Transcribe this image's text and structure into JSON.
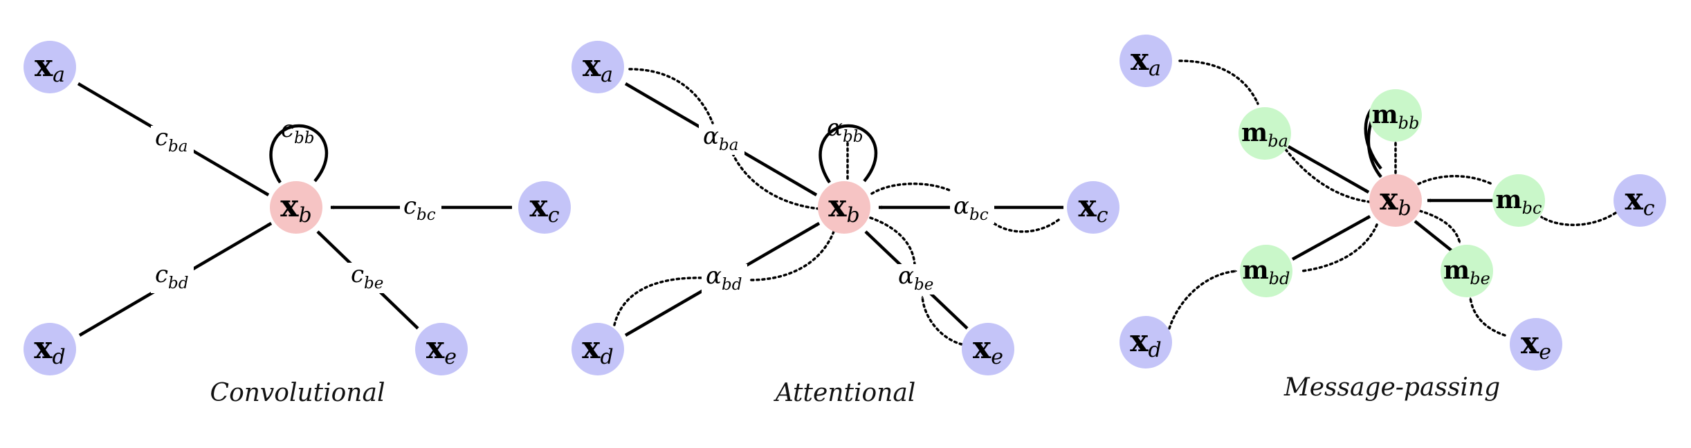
{
  "panels": [
    {
      "caption": "Convolutional",
      "nodes": {
        "a": "x",
        "b": "x",
        "c": "x",
        "d": "x",
        "e": "x"
      },
      "subs": {
        "a": "a",
        "b": "b",
        "c": "c",
        "d": "d",
        "e": "e"
      },
      "labels": [
        {
          "base": "c",
          "sub": "ba"
        },
        {
          "base": "c",
          "sub": "bb"
        },
        {
          "base": "c",
          "sub": "bc"
        },
        {
          "base": "c",
          "sub": "bd"
        },
        {
          "base": "c",
          "sub": "be"
        }
      ]
    },
    {
      "caption": "Attentional",
      "nodes": {
        "a": "x",
        "b": "x",
        "c": "x",
        "d": "x",
        "e": "x"
      },
      "subs": {
        "a": "a",
        "b": "b",
        "c": "c",
        "d": "d",
        "e": "e"
      },
      "labels": [
        {
          "base": "α",
          "sub": "ba"
        },
        {
          "base": "α",
          "sub": "bb"
        },
        {
          "base": "α",
          "sub": "bc"
        },
        {
          "base": "α",
          "sub": "bd"
        },
        {
          "base": "α",
          "sub": "be"
        }
      ]
    },
    {
      "caption": "Message-passing",
      "nodes": {
        "a": "x",
        "b": "x",
        "c": "x",
        "d": "x",
        "e": "x"
      },
      "subs": {
        "a": "a",
        "b": "b",
        "c": "c",
        "d": "d",
        "e": "e"
      },
      "labels": [
        {
          "base": "m",
          "sub": "ba"
        },
        {
          "base": "m",
          "sub": "bb"
        },
        {
          "base": "m",
          "sub": "bc"
        },
        {
          "base": "m",
          "sub": "bd"
        },
        {
          "base": "m",
          "sub": "be"
        }
      ]
    }
  ],
  "colors": {
    "source_node": "#c4c4f8",
    "center_node": "#f6c4c4",
    "message_node": "#c9f7c9"
  }
}
